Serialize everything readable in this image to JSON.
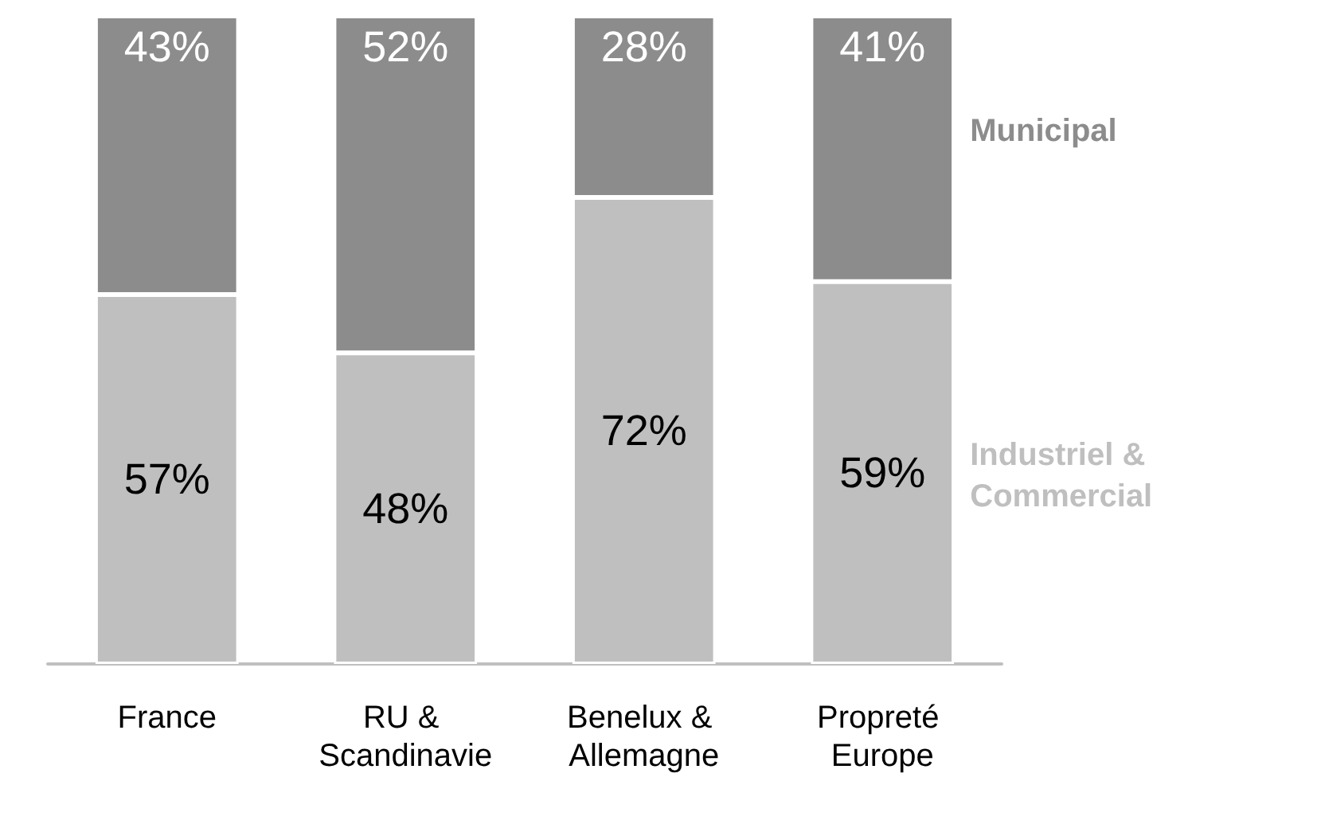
{
  "chart_data": {
    "type": "bar",
    "stacked": true,
    "legend": false,
    "ylim": [
      0,
      100
    ],
    "tick_labels": "x",
    "categories": [
      "France",
      "RU & Scandinavie",
      "Benelux & Allemagne",
      "Propreté Europe"
    ],
    "series": [
      {
        "name": "Industriel & Commercial",
        "color": "#bfbfbf",
        "values": [
          57,
          48,
          72,
          59
        ],
        "value_labels": [
          "57%",
          "48%",
          "72%",
          "59%"
        ]
      },
      {
        "name": "Municipal",
        "color": "#8c8c8c",
        "values": [
          43,
          52,
          28,
          41
        ],
        "value_labels": [
          "43%",
          "52%",
          "28%",
          "41%"
        ]
      }
    ]
  }
}
